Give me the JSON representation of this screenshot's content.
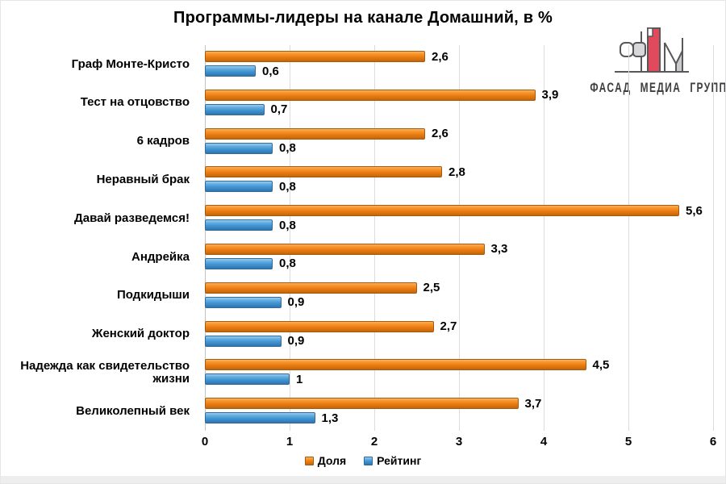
{
  "title": "Программы-лидеры на канале Домашний, в %",
  "logo": {
    "text": "ФАСАД МЕДИА ГРУПП",
    "red": "#e04a5c",
    "grey": "#cbcbcd",
    "outline": "#58585a"
  },
  "colors": {
    "share": "#ec7f16",
    "rating": "#4295d3",
    "gridline": "#dcdcdc"
  },
  "legend": [
    {
      "label": "Доля",
      "series": "share"
    },
    {
      "label": "Рейтинг",
      "series": "rating"
    }
  ],
  "chart_data": {
    "type": "bar",
    "orientation": "horizontal",
    "title": "Программы-лидеры на канале Домашний, в %",
    "categories": [
      "Граф Монте-Кристо",
      "Тест на отцовство",
      "6 кадров",
      "Неравный брак",
      "Давай разведемся!",
      "Андрейка",
      "Подкидыши",
      "Женский доктор",
      "Надежда как свидетельство жизни",
      "Великолепный век"
    ],
    "series": [
      {
        "name": "Доля",
        "color": "#ec7f16",
        "values": [
          2.6,
          3.9,
          2.6,
          2.8,
          5.6,
          3.3,
          2.5,
          2.7,
          4.5,
          3.7
        ],
        "labels": [
          "2,6",
          "3,9",
          "2,6",
          "2,8",
          "5,6",
          "3,3",
          "2,5",
          "2,7",
          "4,5",
          "3,7"
        ]
      },
      {
        "name": "Рейтинг",
        "color": "#4295d3",
        "values": [
          0.6,
          0.7,
          0.8,
          0.8,
          0.8,
          0.8,
          0.9,
          0.9,
          1,
          1.3
        ],
        "labels": [
          "0,6",
          "0,7",
          "0,8",
          "0,8",
          "0,8",
          "0,8",
          "0,9",
          "0,9",
          "1",
          "1,3"
        ]
      }
    ],
    "xlim": [
      0,
      6
    ],
    "xticks": [
      "0",
      "1",
      "2",
      "3",
      "4",
      "5",
      "6"
    ],
    "grid": true,
    "legend_position": "bottom"
  }
}
